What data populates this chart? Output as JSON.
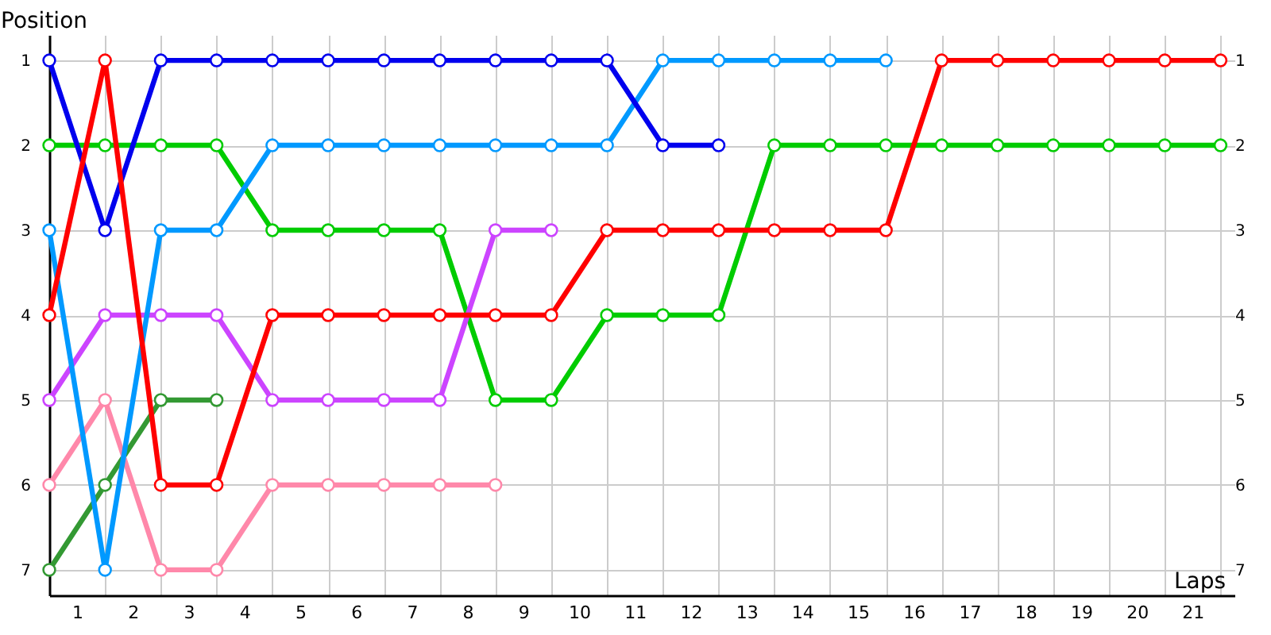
{
  "chart_data": {
    "type": "line",
    "xlabel": "Laps",
    "ylabel": "Position",
    "x": [
      0,
      1,
      2,
      3,
      4,
      5,
      6,
      7,
      8,
      9,
      10,
      11,
      12,
      13,
      14,
      15,
      16,
      17,
      18,
      19,
      20,
      21
    ],
    "series": [
      {
        "color": "#00cc00",
        "values": [
          2,
          2,
          2,
          2,
          3,
          3,
          3,
          3,
          5,
          5,
          4,
          4,
          4,
          2,
          2,
          2,
          2,
          2,
          2,
          2,
          2,
          2
        ]
      },
      {
        "color": "#339933",
        "values": [
          7,
          6,
          5,
          5,
          null,
          null,
          null,
          null,
          null,
          null,
          null,
          null,
          null,
          null,
          null,
          null,
          null,
          null,
          null,
          null,
          null,
          null
        ]
      },
      {
        "color": "#ff88aa",
        "values": [
          6,
          5,
          7,
          7,
          6,
          6,
          6,
          6,
          6,
          null,
          null,
          null,
          null,
          null,
          null,
          null,
          null,
          null,
          null,
          null,
          null,
          null
        ]
      },
      {
        "color": "#cc44ff",
        "values": [
          5,
          4,
          4,
          4,
          5,
          5,
          5,
          5,
          3,
          3,
          null,
          null,
          null,
          null,
          null,
          null,
          null,
          null,
          null,
          null,
          null,
          null
        ]
      },
      {
        "color": "#0099ff",
        "values": [
          3,
          7,
          3,
          3,
          2,
          2,
          2,
          2,
          2,
          2,
          2,
          1,
          1,
          1,
          1,
          1,
          null,
          null,
          null,
          null,
          null,
          null
        ]
      },
      {
        "color": "#0000ee",
        "values": [
          1,
          3,
          1,
          1,
          1,
          1,
          1,
          1,
          1,
          1,
          1,
          2,
          2,
          null,
          null,
          null,
          null,
          null,
          null,
          null,
          null,
          null
        ]
      },
      {
        "color": "#ff0000",
        "values": [
          4,
          1,
          6,
          6,
          4,
          4,
          4,
          4,
          4,
          4,
          3,
          3,
          3,
          3,
          3,
          3,
          1,
          1,
          1,
          1,
          1,
          1
        ]
      }
    ],
    "xlim": [
      0,
      21.25
    ],
    "xticks": [
      {
        "value": 0,
        "label": null
      },
      {
        "value": 0.5,
        "label": "1"
      },
      {
        "value": 1,
        "label": null
      },
      {
        "value": 1.5,
        "label": "2"
      },
      {
        "value": 2,
        "label": null
      },
      {
        "value": 2.5,
        "label": "3"
      },
      {
        "value": 3,
        "label": null
      },
      {
        "value": 3.5,
        "label": "4"
      },
      {
        "value": 4,
        "label": null
      },
      {
        "value": 4.5,
        "label": "5"
      },
      {
        "value": 5,
        "label": null
      },
      {
        "value": 5.5,
        "label": "6"
      },
      {
        "value": 6,
        "label": null
      },
      {
        "value": 6.5,
        "label": "7"
      },
      {
        "value": 7,
        "label": null
      },
      {
        "value": 7.5,
        "label": "8"
      },
      {
        "value": 8,
        "label": null
      },
      {
        "value": 8.5,
        "label": "9"
      },
      {
        "value": 9,
        "label": null
      },
      {
        "value": 9.5,
        "label": "10"
      },
      {
        "value": 10,
        "label": null
      },
      {
        "value": 10.5,
        "label": "11"
      },
      {
        "value": 11,
        "label": null
      },
      {
        "value": 11.5,
        "label": "12"
      },
      {
        "value": 12,
        "label": null
      },
      {
        "value": 12.5,
        "label": "13"
      },
      {
        "value": 13,
        "label": null
      },
      {
        "value": 13.5,
        "label": "14"
      },
      {
        "value": 14,
        "label": null
      },
      {
        "value": 14.5,
        "label": "15"
      },
      {
        "value": 15,
        "label": null
      },
      {
        "value": 15.5,
        "label": "16"
      },
      {
        "value": 16,
        "label": null
      },
      {
        "value": 16.5,
        "label": "17"
      },
      {
        "value": 17,
        "label": null
      },
      {
        "value": 17.5,
        "label": "18"
      },
      {
        "value": 18,
        "label": null
      },
      {
        "value": 18.5,
        "label": "19"
      },
      {
        "value": 19,
        "label": null
      },
      {
        "value": 19.5,
        "label": "20"
      },
      {
        "value": 20,
        "label": null
      },
      {
        "value": 20.5,
        "label": "21"
      },
      {
        "value": 21,
        "label": null
      }
    ],
    "ylim": [
      7.3,
      0.7
    ],
    "yticks": [
      1,
      2,
      3,
      4,
      5,
      6,
      7
    ],
    "y2lim": [
      7.3,
      0.7
    ],
    "y2ticks": [
      1,
      2,
      3,
      4,
      5,
      6,
      7
    ],
    "grid": true,
    "marker": "circle",
    "line_style": "solid"
  }
}
